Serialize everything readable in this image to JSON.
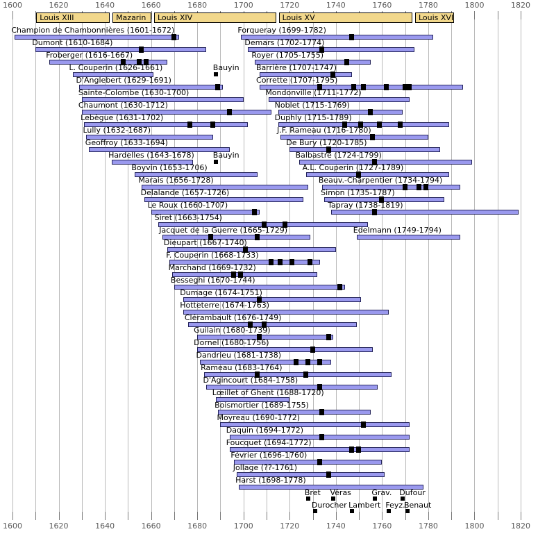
{
  "chart_data": {
    "type": "bar",
    "subtype": "timeline-gantt",
    "title": "French harpsichord composers timeline with royal reigns",
    "x_range": [
      1600,
      1820
    ],
    "x_minor_step": 10,
    "x_major_step": 20,
    "grid": true,
    "x_major_ticks": [
      "1600",
      "1620",
      "1640",
      "1660",
      "1680",
      "1700",
      "1720",
      "1740",
      "1760",
      "1780",
      "1800",
      "1820"
    ],
    "reigns": [
      {
        "label": "Louis XIII",
        "start": 1610,
        "end": 1643
      },
      {
        "label": "Mazarin",
        "start": 1643,
        "end": 1661
      },
      {
        "label": "Louis XIV",
        "start": 1661,
        "end": 1715
      },
      {
        "label": "Louis XV",
        "start": 1715,
        "end": 1774
      },
      {
        "label": "Louis XVI",
        "start": 1774,
        "end": 1792
      }
    ],
    "composers": [
      {
        "label": "Champion de Chambonnières (1601-1672)",
        "start": 1601,
        "end": 1672,
        "row": 1,
        "column": "left",
        "markers": [
          1670
        ]
      },
      {
        "label": "Dumont (1610-1684)",
        "start": 1610,
        "end": 1684,
        "row": 2,
        "column": "left",
        "markers": [
          1656
        ]
      },
      {
        "label": "Froberger (1616-1667)",
        "start": 1616,
        "end": 1667,
        "row": 3,
        "column": "left",
        "markers": [
          1648,
          1655,
          1658
        ]
      },
      {
        "label": "L. Couperin (1626-1661)",
        "start": 1626,
        "end": 1661,
        "row": 4,
        "column": "left",
        "markers": []
      },
      {
        "label": "D'Anglebert (1629-1691)",
        "start": 1629,
        "end": 1691,
        "row": 5,
        "column": "left",
        "markers": [
          1689
        ]
      },
      {
        "label": "Sainte-Colombe (1630-1700)",
        "start": 1630,
        "end": 1700,
        "row": 6,
        "column": "left",
        "markers": []
      },
      {
        "label": "Chaumont (1630-1712)",
        "start": 1630,
        "end": 1712,
        "row": 7,
        "column": "left",
        "markers": [
          1694
        ]
      },
      {
        "label": "Lebègue (1631-1702)",
        "start": 1631,
        "end": 1702,
        "row": 8,
        "column": "left",
        "markers": [
          1677,
          1687
        ]
      },
      {
        "label": "Lully (1632-1687)",
        "start": 1632,
        "end": 1687,
        "row": 9,
        "column": "left",
        "markers": []
      },
      {
        "label": "Geoffroy (1633-1694)",
        "start": 1633,
        "end": 1694,
        "row": 10,
        "column": "left",
        "markers": []
      },
      {
        "label": "Hardelles (1643-1678)",
        "start": 1643,
        "end": 1678,
        "row": 11,
        "column": "left",
        "markers": []
      },
      {
        "label": "Boyvin (1653-1706)",
        "start": 1653,
        "end": 1706,
        "row": 12,
        "column": "left",
        "markers": []
      },
      {
        "label": "Marais (1656-1728)",
        "start": 1656,
        "end": 1728,
        "row": 13,
        "column": "left",
        "markers": []
      },
      {
        "label": "Delalande (1657-1726)",
        "start": 1657,
        "end": 1726,
        "row": 14,
        "column": "left",
        "markers": []
      },
      {
        "label": "Le Roux (1660-1707)",
        "start": 1660,
        "end": 1707,
        "row": 15,
        "column": "left",
        "markers": [
          1705
        ]
      },
      {
        "label": "Siret (1663-1754)",
        "start": 1663,
        "end": 1754,
        "row": 16,
        "column": "left",
        "markers": [
          1709,
          1718
        ]
      },
      {
        "label": "Jacquet de la Guerre (1665-1729)",
        "start": 1665,
        "end": 1729,
        "row": 17,
        "column": "left",
        "markers": [
          1686,
          1706
        ]
      },
      {
        "label": "Dieupart (1667-1740)",
        "start": 1667,
        "end": 1740,
        "row": 18,
        "column": "left",
        "markers": [
          1701
        ]
      },
      {
        "label": "F. Couperin (1668-1733)",
        "start": 1668,
        "end": 1733,
        "row": 19,
        "column": "left",
        "markers": [
          1712,
          1716,
          1721,
          1729
        ]
      },
      {
        "label": "Marchand (1669-1732)",
        "start": 1669,
        "end": 1732,
        "row": 20,
        "column": "left",
        "markers": [
          1696,
          1699
        ]
      },
      {
        "label": "Besseghi (1670-1744)",
        "start": 1670,
        "end": 1744,
        "row": 21,
        "column": "left",
        "markers": [
          1742
        ]
      },
      {
        "label": "Dumage (1674-1751)",
        "start": 1674,
        "end": 1751,
        "row": 22,
        "column": "left",
        "markers": [
          1707
        ]
      },
      {
        "label": "Hotteterre (1674-1763)",
        "start": 1674,
        "end": 1763,
        "row": 23,
        "column": "left",
        "markers": []
      },
      {
        "label": "Clérambault (1676-1749)",
        "start": 1676,
        "end": 1749,
        "row": 24,
        "column": "left",
        "markers": [
          1703,
          1709
        ]
      },
      {
        "label": "Guilain (1680-1739)",
        "start": 1680,
        "end": 1739,
        "row": 25,
        "column": "left",
        "markers": [
          1707,
          1737
        ]
      },
      {
        "label": "Dornel (1680-1756)",
        "start": 1680,
        "end": 1756,
        "row": 26,
        "column": "left",
        "markers": [
          1730
        ]
      },
      {
        "label": "Dandrieu (1681-1738)",
        "start": 1681,
        "end": 1738,
        "row": 27,
        "column": "left",
        "markers": [
          1723,
          1728,
          1733
        ]
      },
      {
        "label": "Rameau (1683-1764)",
        "start": 1683,
        "end": 1764,
        "row": 28,
        "column": "left",
        "markers": [
          1706,
          1727
        ]
      },
      {
        "label": "D'Agincourt (1684-1758)",
        "start": 1684,
        "end": 1758,
        "row": 29,
        "column": "left",
        "markers": [
          1733
        ]
      },
      {
        "label": "Lœillet of Ghent (1688-1720)",
        "start": 1688,
        "end": 1720,
        "row": 30,
        "column": "left",
        "markers": []
      },
      {
        "label": "Boismortier (1689-1755)",
        "start": 1689,
        "end": 1755,
        "row": 31,
        "column": "left",
        "markers": [
          1734
        ]
      },
      {
        "label": "Moyreau (1690-1772)",
        "start": 1690,
        "end": 1772,
        "row": 32,
        "column": "left",
        "markers": [
          1752
        ]
      },
      {
        "label": "Daquin (1694-1772)",
        "start": 1694,
        "end": 1772,
        "row": 33,
        "column": "left",
        "markers": [
          1734
        ]
      },
      {
        "label": "Foucquet (1694-1772)",
        "start": 1694,
        "end": 1772,
        "row": 34,
        "column": "left",
        "markers": [
          1747,
          1750
        ]
      },
      {
        "label": "Février (1696-1760)",
        "start": 1696,
        "end": 1760,
        "row": 35,
        "column": "left",
        "markers": [
          1733
        ]
      },
      {
        "label": "Jollage (??-1761)",
        "start": 1697,
        "end": 1761,
        "row": 36,
        "column": "left",
        "markers": [
          1737
        ],
        "birth_unknown": true
      },
      {
        "label": "Harst (1698-1778)",
        "start": 1698,
        "end": 1778,
        "row": 37,
        "column": "left",
        "markers": []
      },
      {
        "label": "Forqueray (1699-1782)",
        "start": 1699,
        "end": 1782,
        "row": 1,
        "column": "right",
        "markers": [
          1747
        ]
      },
      {
        "label": "Demars (1702-1774)",
        "start": 1702,
        "end": 1774,
        "row": 2,
        "column": "right",
        "markers": [
          1734
        ]
      },
      {
        "label": "Royer (1705-1755)",
        "start": 1705,
        "end": 1755,
        "row": 3,
        "column": "right",
        "markers": [
          1745
        ]
      },
      {
        "label": "Barrière (1707-1747)",
        "start": 1707,
        "end": 1747,
        "row": 4,
        "column": "right",
        "markers": [
          1739
        ]
      },
      {
        "label": "Corrette (1707-1795)",
        "start": 1707,
        "end": 1795,
        "row": 5,
        "column": "right",
        "markers": [
          1733,
          1748,
          1752,
          1762,
          1770,
          1772
        ]
      },
      {
        "label": "Mondonville (1711-1772)",
        "start": 1711,
        "end": 1772,
        "row": 6,
        "column": "right",
        "markers": []
      },
      {
        "label": "Noblet (1715-1769)",
        "start": 1715,
        "end": 1769,
        "row": 7,
        "column": "right",
        "markers": [
          1755
        ]
      },
      {
        "label": "Duphly (1715-1789)",
        "start": 1715,
        "end": 1789,
        "row": 8,
        "column": "right",
        "markers": [
          1744,
          1751,
          1759,
          1768
        ]
      },
      {
        "label": "J.F. Rameau (1716-1780)",
        "start": 1716,
        "end": 1780,
        "row": 9,
        "column": "right",
        "markers": [
          1756
        ]
      },
      {
        "label": "De Bury (1720-1785)",
        "start": 1720,
        "end": 1785,
        "row": 10,
        "column": "right",
        "markers": [
          1737
        ]
      },
      {
        "label": "Balbastre (1724-1799)",
        "start": 1724,
        "end": 1799,
        "row": 11,
        "column": "right",
        "markers": [
          1757
        ]
      },
      {
        "label": "A.L. Couperin (1727-1789)",
        "start": 1727,
        "end": 1789,
        "row": 12,
        "column": "right",
        "markers": [
          1750
        ]
      },
      {
        "label": "Beauv.-Charpentier (1734-1794)",
        "start": 1734,
        "end": 1794,
        "row": 13,
        "column": "right",
        "markers": [
          1770,
          1776,
          1779
        ]
      },
      {
        "label": "Simon (1735-1787)",
        "start": 1735,
        "end": 1787,
        "row": 14,
        "column": "right",
        "markers": [
          1760
        ]
      },
      {
        "label": "Tapray (1738-1819)",
        "start": 1738,
        "end": 1819,
        "row": 15,
        "column": "right",
        "markers": [
          1757
        ]
      },
      {
        "label": "Edelmann (1749-1794)",
        "start": 1749,
        "end": 1794,
        "row": 17,
        "column": "right",
        "markers": []
      }
    ],
    "floating_points": [
      {
        "label": "Bauyin",
        "year": 1688,
        "row": 4
      },
      {
        "label": "Bauyin",
        "year": 1688,
        "row": 11
      }
    ],
    "dated_only": [
      {
        "label": "Bret",
        "year": 1728,
        "line": 1
      },
      {
        "label": "Véras",
        "year": 1739,
        "line": 1
      },
      {
        "label": "Grav.",
        "year": 1757,
        "line": 1
      },
      {
        "label": "Dufour",
        "year": 1769,
        "line": 1
      },
      {
        "label": "Durocher",
        "year": 1731,
        "line": 2
      },
      {
        "label": "Lambert",
        "year": 1747,
        "line": 2
      },
      {
        "label": "Feyz.",
        "year": 1763,
        "line": 2
      },
      {
        "label": "Benaut",
        "year": 1771,
        "line": 2
      }
    ],
    "colors": {
      "background": "#ffffff",
      "reign_fill": "#f2d88c",
      "reign_border": "#000000",
      "bar_fill": "#9a99ee",
      "bar_border": "#23235a",
      "marker": "#000000",
      "gridline": "#b8b8b8",
      "tick": "#787878",
      "axis_text": "#5a5a5a",
      "label_text": "#000000"
    }
  }
}
